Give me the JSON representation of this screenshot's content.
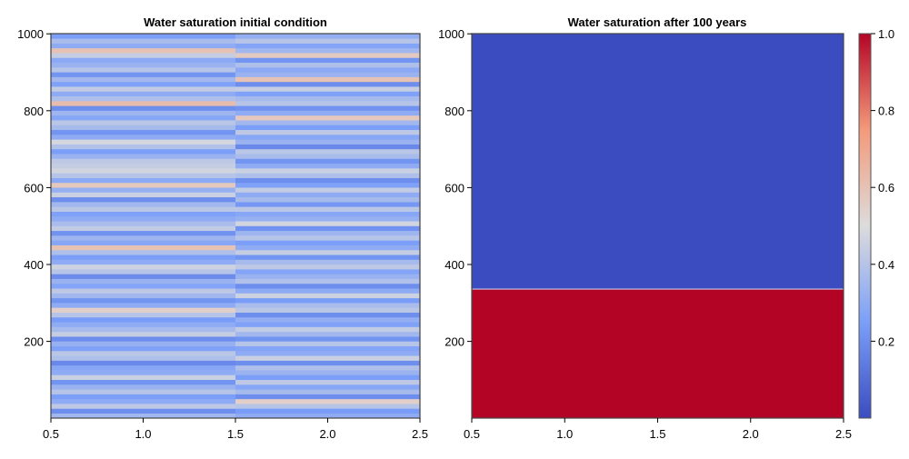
{
  "chart_data": [
    {
      "type": "heatmap",
      "title": "Water saturation initial condition",
      "xlim": [
        0.5,
        2.5
      ],
      "ylim": [
        0.5,
        1000.5
      ],
      "xticks": [
        "0.5",
        "1.0",
        "1.5",
        "2.0",
        "2.5"
      ],
      "xtick_values": [
        0.5,
        1.0,
        1.5,
        2.0,
        2.5
      ],
      "yticks": [
        "200",
        "400",
        "600",
        "800",
        "1000"
      ],
      "ytick_values": [
        200,
        400,
        600,
        800,
        1000
      ],
      "columns": [
        {
          "x_range": [
            0.5,
            1.5
          ],
          "note": "banded values, bottom to top",
          "values": [
            0.35,
            0.2,
            0.42,
            0.3,
            0.25,
            0.4,
            0.33,
            0.22,
            0.45,
            0.3,
            0.28,
            0.18,
            0.38,
            0.41,
            0.26,
            0.32,
            0.2,
            0.44,
            0.36,
            0.3,
            0.24,
            0.4,
            0.55,
            0.3,
            0.22,
            0.35,
            0.42,
            0.27,
            0.33,
            0.19,
            0.4,
            0.46,
            0.3,
            0.25,
            0.38,
            0.6,
            0.28,
            0.34,
            0.21,
            0.43,
            0.37,
            0.3,
            0.26,
            0.41,
            0.35,
            0.2,
            0.45,
            0.32,
            0.58,
            0.29,
            0.4,
            0.47,
            0.44,
            0.42,
            0.33,
            0.25,
            0.39,
            0.48,
            0.3,
            0.22,
            0.36,
            0.41,
            0.28,
            0.34,
            0.2,
            0.62,
            0.38,
            0.3,
            0.43,
            0.26,
            0.35,
            0.22,
            0.4,
            0.33,
            0.29,
            0.44,
            0.6,
            0.3,
            0.37,
            0.25
          ]
        },
        {
          "x_range": [
            1.5,
            2.5
          ],
          "values": [
            0.3,
            0.24,
            0.4,
            0.55,
            0.2,
            0.36,
            0.28,
            0.42,
            0.25,
            0.33,
            0.38,
            0.2,
            0.45,
            0.3,
            0.27,
            0.4,
            0.22,
            0.35,
            0.43,
            0.26,
            0.31,
            0.2,
            0.41,
            0.37,
            0.24,
            0.46,
            0.3,
            0.2,
            0.39,
            0.33,
            0.27,
            0.42,
            0.36,
            0.22,
            0.44,
            0.3,
            0.25,
            0.4,
            0.34,
            0.21,
            0.47,
            0.32,
            0.28,
            0.41,
            0.23,
            0.36,
            0.3,
            0.43,
            0.26,
            0.2,
            0.38,
            0.45,
            0.3,
            0.22,
            0.37,
            0.41,
            0.18,
            0.33,
            0.28,
            0.42,
            0.25,
            0.35,
            0.58,
            0.3,
            0.21,
            0.4,
            0.36,
            0.26,
            0.44,
            0.2,
            0.6,
            0.33,
            0.29,
            0.38,
            0.22,
            0.57,
            0.35,
            0.27,
            0.4,
            0.31
          ]
        }
      ]
    },
    {
      "type": "heatmap",
      "title": "Water saturation after 100 years",
      "xlim": [
        0.5,
        2.5
      ],
      "ylim": [
        0.5,
        1000.5
      ],
      "xticks": [
        "0.5",
        "1.0",
        "1.5",
        "2.0",
        "2.5"
      ],
      "xtick_values": [
        0.5,
        1.0,
        1.5,
        2.0,
        2.5
      ],
      "yticks": [
        "200",
        "400",
        "600",
        "800",
        "1000"
      ],
      "ytick_values": [
        200,
        400,
        600,
        800,
        1000
      ],
      "regions": [
        {
          "y_range": [
            0.5,
            336
          ],
          "value": 1.0
        },
        {
          "y_range": [
            336,
            1000.5
          ],
          "value": 0.0
        }
      ]
    }
  ],
  "colorbar": {
    "colormap": "coolwarm",
    "range": [
      0.0,
      1.0
    ],
    "ticks": [
      "0.2",
      "0.4",
      "0.6",
      "0.8",
      "1.0"
    ],
    "tick_values": [
      0.2,
      0.4,
      0.6,
      0.8,
      1.0
    ],
    "stops": [
      "#3b4cc0",
      "#7b9ff9",
      "#dddcdc",
      "#f49a7b",
      "#b40426"
    ]
  }
}
